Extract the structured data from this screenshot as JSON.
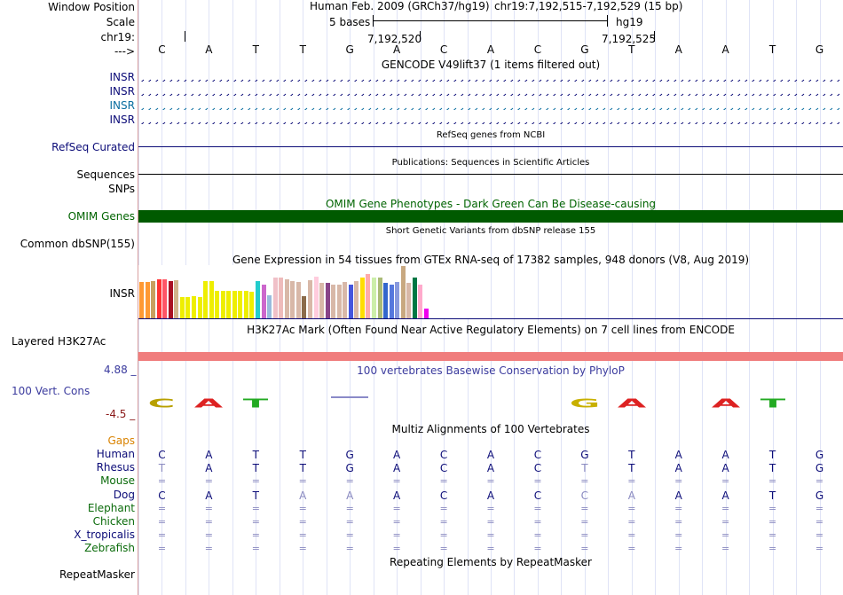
{
  "colors": {
    "label_dark": "#000000",
    "label_blue": "#0c0c78",
    "label_teal": "#0a6ea0",
    "label_green": "#0b6b0b",
    "label_omim": "#006400",
    "label_orange": "#d98200",
    "phylop_blue": "#3b3b9e",
    "phylop_red": "#8b1a1a",
    "h3k27ac_bar": "#f07d7d",
    "omim_bar": "#005a00"
  },
  "header": {
    "window_position_label": "Window Position",
    "assembly_text": "Human Feb. 2009 (GRCh37/hg19)",
    "position_text": "chr19:7,192,515-7,192,529 (15 bp)",
    "scale_label": "Scale",
    "scale_value": "5 bases",
    "scale_db": "hg19",
    "chrom_label": "chr19:",
    "coord_1": "7,192,520",
    "coord_2": "7,192,525",
    "arrow_label": "--->"
  },
  "sequence": [
    "C",
    "A",
    "T",
    "T",
    "G",
    "A",
    "C",
    "A",
    "C",
    "G",
    "T",
    "A",
    "A",
    "T",
    "G"
  ],
  "gencode": {
    "title": "GENCODE V49lift37 (1 items filtered out)",
    "rows": [
      {
        "name": "INSR",
        "color": "label_blue"
      },
      {
        "name": "INSR",
        "color": "label_blue"
      },
      {
        "name": "INSR",
        "color": "label_teal"
      },
      {
        "name": "INSR",
        "color": "label_blue"
      }
    ]
  },
  "refseq": {
    "title": "RefSeq genes from NCBI",
    "label": "RefSeq Curated"
  },
  "publications": {
    "title": "Publications: Sequences in Scientific Articles",
    "label": "Sequences"
  },
  "snps": {
    "label": "SNPs"
  },
  "omim": {
    "title": "OMIM Gene Phenotypes - Dark Green Can Be Disease-causing",
    "label": "OMIM Genes"
  },
  "dbsnp": {
    "title": "Short Genetic Variants from dbSNP release 155",
    "label": "Common dbSNP(155)"
  },
  "gtex": {
    "title": "Gene Expression in 54 tissues from GTEx RNA-seq of 17382 samples, 948 donors (V8, Aug 2019)",
    "label": "INSR",
    "bars": [
      {
        "v": 0.68,
        "c": "#ff9933"
      },
      {
        "v": 0.68,
        "c": "#ff9933"
      },
      {
        "v": 0.7,
        "c": "#c8a060"
      },
      {
        "v": 0.74,
        "c": "#ff3333"
      },
      {
        "v": 0.74,
        "c": "#ff5566"
      },
      {
        "v": 0.7,
        "c": "#aa1122"
      },
      {
        "v": 0.72,
        "c": "#d2b48c"
      },
      {
        "v": 0.4,
        "c": "#eeee00"
      },
      {
        "v": 0.4,
        "c": "#eeee00"
      },
      {
        "v": 0.42,
        "c": "#eeee00"
      },
      {
        "v": 0.4,
        "c": "#eeee00"
      },
      {
        "v": 0.7,
        "c": "#eeee00"
      },
      {
        "v": 0.7,
        "c": "#eeee00"
      },
      {
        "v": 0.52,
        "c": "#eeee00"
      },
      {
        "v": 0.52,
        "c": "#eeee00"
      },
      {
        "v": 0.52,
        "c": "#eeee00"
      },
      {
        "v": 0.52,
        "c": "#eeee00"
      },
      {
        "v": 0.52,
        "c": "#eeee00"
      },
      {
        "v": 0.52,
        "c": "#eeee00"
      },
      {
        "v": 0.5,
        "c": "#eeee00"
      },
      {
        "v": 0.7,
        "c": "#22cccc"
      },
      {
        "v": 0.64,
        "c": "#cc66cc"
      },
      {
        "v": 0.44,
        "c": "#99bbdd"
      },
      {
        "v": 0.76,
        "c": "#f0c0c8"
      },
      {
        "v": 0.76,
        "c": "#eebbbb"
      },
      {
        "v": 0.74,
        "c": "#d8b8a8"
      },
      {
        "v": 0.7,
        "c": "#d8b8a8"
      },
      {
        "v": 0.68,
        "c": "#d8b8a8"
      },
      {
        "v": 0.42,
        "c": "#8b6b4b"
      },
      {
        "v": 0.72,
        "c": "#d8b8a8"
      },
      {
        "v": 0.78,
        "c": "#ffccdd"
      },
      {
        "v": 0.66,
        "c": "#d8b8a8"
      },
      {
        "v": 0.66,
        "c": "#884488"
      },
      {
        "v": 0.64,
        "c": "#d8b8a8"
      },
      {
        "v": 0.64,
        "c": "#d8b8a8"
      },
      {
        "v": 0.68,
        "c": "#d8b8a8"
      },
      {
        "v": 0.64,
        "c": "#4455dd"
      },
      {
        "v": 0.7,
        "c": "#d8b8a8"
      },
      {
        "v": 0.76,
        "c": "#ffdd00"
      },
      {
        "v": 0.84,
        "c": "#ffaaaa"
      },
      {
        "v": 0.76,
        "c": "#cceeaa"
      },
      {
        "v": 0.76,
        "c": "#aabb77"
      },
      {
        "v": 0.66,
        "c": "#3366cc"
      },
      {
        "v": 0.64,
        "c": "#5577dd"
      },
      {
        "v": 0.68,
        "c": "#8899dd"
      },
      {
        "v": 0.98,
        "c": "#c8a880"
      },
      {
        "v": 0.66,
        "c": "#d8b8a8"
      },
      {
        "v": 0.76,
        "c": "#007744"
      },
      {
        "v": 0.64,
        "c": "#ffaacc"
      },
      {
        "v": 0.18,
        "c": "#ee00ee"
      }
    ]
  },
  "h3k27ac": {
    "title": "H3K27Ac Mark (Often Found Near Active Regulatory Elements) on 7 cell lines from ENCODE",
    "label": "Layered H3K27Ac"
  },
  "phylop": {
    "title": "100 vertebrates Basewise Conservation by PhyloP",
    "label": "100 Vert. Cons",
    "max": "4.88 _",
    "min": "-4.5 _",
    "logos": [
      {
        "l": "C",
        "c": "#b8a000"
      },
      {
        "l": "A",
        "c": "#dd2222"
      },
      {
        "l": "T",
        "c": "#22aa22"
      },
      {
        "l": "",
        "c": ""
      },
      {
        "l": "",
        "c": ""
      },
      {
        "l": "",
        "c": ""
      },
      {
        "l": "",
        "c": ""
      },
      {
        "l": "",
        "c": ""
      },
      {
        "l": "",
        "c": ""
      },
      {
        "l": "G",
        "c": "#c8b000"
      },
      {
        "l": "A",
        "c": "#dd2222"
      },
      {
        "l": "",
        "c": ""
      },
      {
        "l": "A",
        "c": "#dd2222"
      },
      {
        "l": "T",
        "c": "#22aa22"
      },
      {
        "l": "",
        "c": ""
      }
    ]
  },
  "multiz": {
    "title": "Multiz Alignments of 100 Vertebrates",
    "gaps_label": "Gaps",
    "species": [
      {
        "name": "Human",
        "color": "label_blue",
        "seq": [
          "C",
          "A",
          "T",
          "T",
          "G",
          "A",
          "C",
          "A",
          "C",
          "G",
          "T",
          "A",
          "A",
          "T",
          "G"
        ],
        "faint": []
      },
      {
        "name": "Rhesus",
        "color": "label_blue",
        "seq": [
          "T",
          "A",
          "T",
          "T",
          "G",
          "A",
          "C",
          "A",
          "C",
          "T",
          "T",
          "A",
          "A",
          "T",
          "G"
        ],
        "faint": [
          0,
          9
        ]
      },
      {
        "name": "Mouse",
        "color": "label_green",
        "seq": [
          "=",
          "=",
          "=",
          "=",
          "=",
          "=",
          "=",
          "=",
          "=",
          "=",
          "=",
          "=",
          "=",
          "=",
          "="
        ],
        "faint": []
      },
      {
        "name": "Dog",
        "color": "label_blue",
        "seq": [
          "C",
          "A",
          "T",
          "A",
          "A",
          "A",
          "C",
          "A",
          "C",
          "C",
          "A",
          "A",
          "A",
          "T",
          "G"
        ],
        "faint": [
          3,
          4,
          9,
          10
        ]
      },
      {
        "name": "Elephant",
        "color": "label_green",
        "seq": [
          "=",
          "=",
          "=",
          "=",
          "=",
          "=",
          "=",
          "=",
          "=",
          "=",
          "=",
          "=",
          "=",
          "=",
          "="
        ],
        "faint": []
      },
      {
        "name": "Chicken",
        "color": "label_green",
        "seq": [
          "=",
          "=",
          "=",
          "=",
          "=",
          "=",
          "=",
          "=",
          "=",
          "=",
          "=",
          "=",
          "=",
          "=",
          "="
        ],
        "faint": []
      },
      {
        "name": "X_tropicalis",
        "color": "label_blue",
        "seq": [
          "=",
          "=",
          "=",
          "=",
          "=",
          "=",
          "=",
          "=",
          "=",
          "=",
          "=",
          "=",
          "=",
          "=",
          "="
        ],
        "faint": []
      },
      {
        "name": "Zebrafish",
        "color": "label_green",
        "seq": [
          "=",
          "=",
          "=",
          "=",
          "=",
          "=",
          "=",
          "=",
          "=",
          "=",
          "=",
          "=",
          "=",
          "=",
          "="
        ],
        "faint": []
      }
    ]
  },
  "repeatmasker": {
    "title": "Repeating Elements by RepeatMasker",
    "label": "RepeatMasker"
  }
}
